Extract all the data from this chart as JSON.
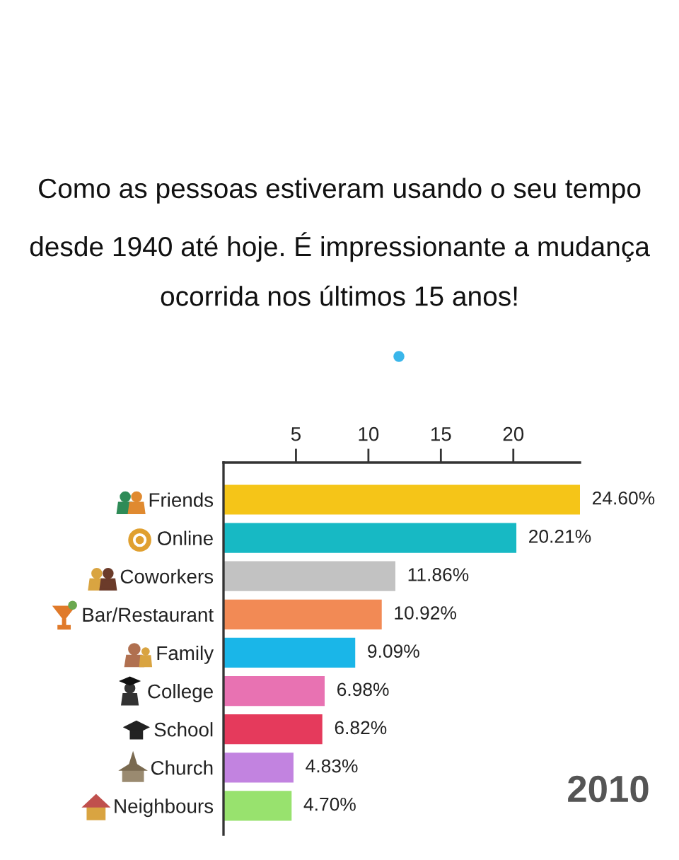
{
  "chart_data": {
    "type": "bar",
    "orientation": "horizontal",
    "title": "Como as pessoas estiveram usando o seu tempo desde 1940 até hoje. É impressionante a mudança ocorrida nos últimos 15 anos!",
    "categories": [
      "Friends",
      "Online",
      "Coworkers",
      "Bar/Restaurant",
      "Family",
      "College",
      "School",
      "Church",
      "Neighbours"
    ],
    "values": [
      24.6,
      20.21,
      11.86,
      10.92,
      9.09,
      6.98,
      6.82,
      4.83,
      4.7
    ],
    "colors": [
      "#f5c518",
      "#17b9c4",
      "#c2c2c2",
      "#f28a55",
      "#1ab6e8",
      "#e872b2",
      "#e53a5c",
      "#c283e0",
      "#98e26e"
    ],
    "value_labels": [
      "24.60%",
      "20.21%",
      "11.86%",
      "10.92%",
      "9.09%",
      "6.98%",
      "6.82%",
      "4.83%",
      "4.70%"
    ],
    "xlim": [
      0,
      24.6
    ],
    "xticks": [
      5,
      10,
      15,
      20
    ],
    "annotations": [
      "2010"
    ],
    "grid": false
  }
}
